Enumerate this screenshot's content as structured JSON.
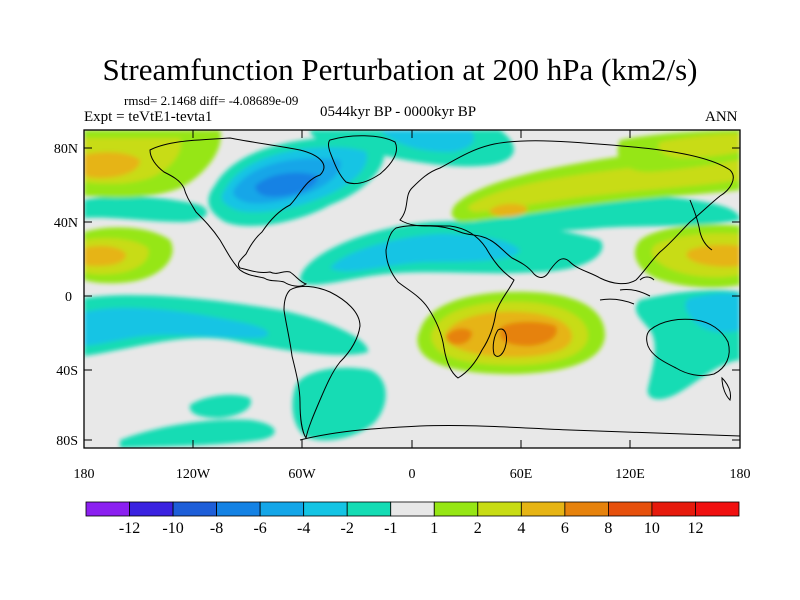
{
  "header": {
    "title": "Streamfunction Perturbation at 200 hPa (km2/s)",
    "stats": "rmsd= 2.1468 diff= -4.08689e-09",
    "experiment": "Expt = teVtE1-tevta1",
    "period": "0544kyr BP - 0000kyr BP",
    "season": "ANN"
  },
  "map": {
    "y_ticks": [
      "80N",
      "40N",
      "0",
      "40S",
      "80S"
    ],
    "x_ticks": [
      "180",
      "120W",
      "60W",
      "0",
      "60E",
      "120E",
      "180"
    ],
    "background_color": "#e8e8e8",
    "frame_color": "#000000",
    "coastline_color": "#000000"
  },
  "colorbar": {
    "labels": [
      "-12",
      "-10",
      "-8",
      "-6",
      "-4",
      "-2",
      "-1",
      "1",
      "2",
      "4",
      "6",
      "8",
      "10",
      "12"
    ],
    "colors": [
      "#8b20f0",
      "#3a22e0",
      "#1e5ed8",
      "#1482e4",
      "#14a6e8",
      "#14c4e4",
      "#14dcb4",
      "#e8e8e8",
      "#96e614",
      "#c8dc14",
      "#e6b414",
      "#e6820c",
      "#e6500c",
      "#e61a0c",
      "#f01010"
    ]
  }
}
